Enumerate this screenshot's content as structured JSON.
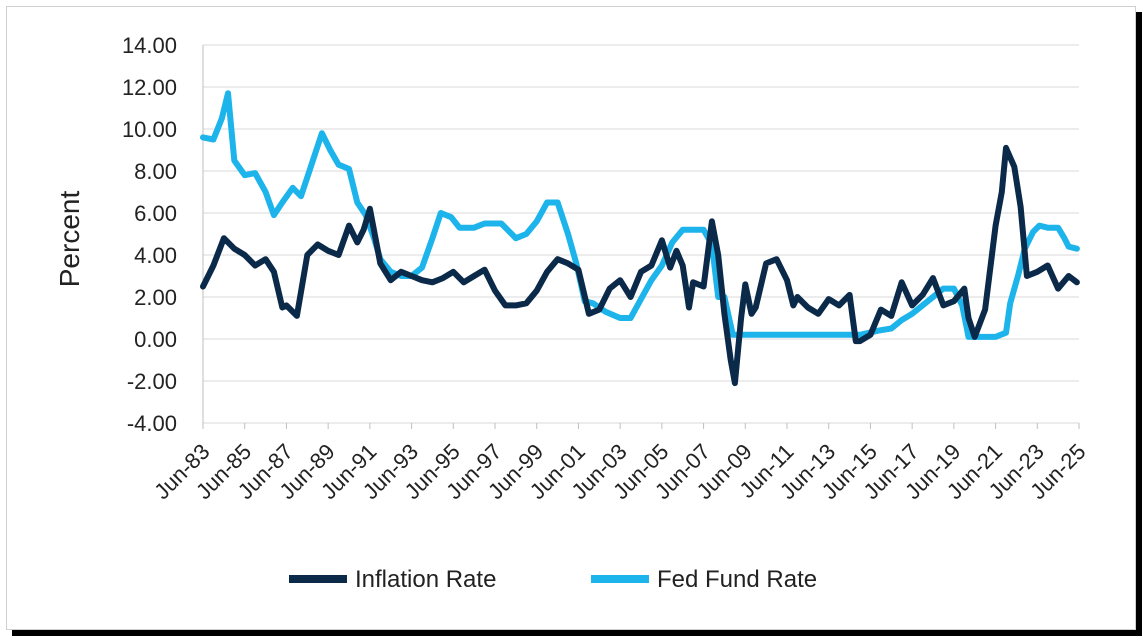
{
  "chart_data": {
    "type": "line",
    "title": "",
    "xlabel": "",
    "ylabel": "Percent",
    "ylim": [
      -4,
      14
    ],
    "yticks": [
      "14.00",
      "12.00",
      "10.00",
      "8.00",
      "6.00",
      "4.00",
      "2.00",
      "0.00",
      "-2.00",
      "-4.00"
    ],
    "xlim": [
      1983.5,
      2025.5
    ],
    "xticks": [
      "Jun-83",
      "Jun-85",
      "Jun-87",
      "Jun-89",
      "Jun-91",
      "Jun-93",
      "Jun-95",
      "Jun-97",
      "Jun-99",
      "Jun-01",
      "Jun-03",
      "Jun-05",
      "Jun-07",
      "Jun-09",
      "Jun-11",
      "Jun-13",
      "Jun-15",
      "Jun-17",
      "Jun-19",
      "Jun-21",
      "Jun-23",
      "Jun-25"
    ],
    "grid": true,
    "legend_position": "bottom",
    "series": [
      {
        "name": "Inflation Rate",
        "color": "#0b2a4a",
        "x": [
          1983.5,
          1984.0,
          1984.5,
          1985.0,
          1985.5,
          1986.0,
          1986.5,
          1986.9,
          1987.3,
          1987.5,
          1988.0,
          1988.5,
          1989.0,
          1989.5,
          1990.0,
          1990.5,
          1990.9,
          1991.2,
          1991.5,
          1992.0,
          1992.5,
          1993.0,
          1993.5,
          1994.0,
          1994.5,
          1995.0,
          1995.5,
          1996.0,
          1996.5,
          1997.0,
          1997.5,
          1998.0,
          1998.5,
          1999.0,
          1999.5,
          2000.0,
          2000.5,
          2001.0,
          2001.5,
          2002.0,
          2002.5,
          2003.0,
          2003.5,
          2004.0,
          2004.5,
          2005.0,
          2005.5,
          2005.9,
          2006.2,
          2006.5,
          2006.8,
          2007.0,
          2007.5,
          2007.9,
          2008.2,
          2008.5,
          2008.8,
          2009.0,
          2009.3,
          2009.5,
          2009.8,
          2010.0,
          2010.5,
          2011.0,
          2011.5,
          2011.8,
          2012.0,
          2012.5,
          2013.0,
          2013.5,
          2014.0,
          2014.5,
          2014.8,
          2015.0,
          2015.5,
          2016.0,
          2016.5,
          2017.0,
          2017.5,
          2018.0,
          2018.5,
          2019.0,
          2019.5,
          2020.0,
          2020.2,
          2020.5,
          2021.0,
          2021.5,
          2021.8,
          2022.0,
          2022.4,
          2022.7,
          2023.0,
          2023.5,
          2024.0,
          2024.5,
          2025.0,
          2025.4
        ],
        "values": [
          2.5,
          3.5,
          4.8,
          4.3,
          4.0,
          3.5,
          3.8,
          3.2,
          1.5,
          1.6,
          1.1,
          4.0,
          4.5,
          4.2,
          4.0,
          5.4,
          4.6,
          5.2,
          6.2,
          3.6,
          2.8,
          3.2,
          3.0,
          2.8,
          2.7,
          2.9,
          3.2,
          2.7,
          3.0,
          3.3,
          2.3,
          1.6,
          1.6,
          1.7,
          2.3,
          3.2,
          3.8,
          3.6,
          3.3,
          1.2,
          1.4,
          2.4,
          2.8,
          2.0,
          3.2,
          3.5,
          4.7,
          3.4,
          4.2,
          3.5,
          1.5,
          2.7,
          2.5,
          5.6,
          4.0,
          1.2,
          -1.0,
          -2.1,
          1.0,
          2.6,
          1.2,
          1.5,
          3.6,
          3.8,
          2.8,
          1.6,
          2.0,
          1.5,
          1.2,
          1.9,
          1.6,
          2.1,
          -0.1,
          -0.1,
          0.2,
          1.4,
          1.1,
          2.7,
          1.6,
          2.1,
          2.9,
          1.6,
          1.8,
          2.4,
          1.0,
          0.1,
          1.4,
          5.4,
          7.0,
          9.1,
          8.2,
          6.3,
          3.0,
          3.2,
          3.5,
          2.4,
          3.0,
          2.7
        ]
      },
      {
        "name": "Fed Fund Rate",
        "color": "#1cb4ea",
        "x": [
          1983.5,
          1984.0,
          1984.4,
          1984.7,
          1985.0,
          1985.5,
          1986.0,
          1986.5,
          1986.9,
          1987.3,
          1987.8,
          1988.2,
          1988.6,
          1989.2,
          1989.6,
          1990.0,
          1990.5,
          1990.9,
          1991.3,
          1991.7,
          1992.0,
          1992.5,
          1993.0,
          1993.5,
          1994.0,
          1994.5,
          1994.9,
          1995.4,
          1995.8,
          1996.5,
          1997.0,
          1997.8,
          1998.5,
          1999.0,
          1999.5,
          2000.0,
          2000.5,
          2001.0,
          2001.4,
          2001.8,
          2002.2,
          2002.8,
          2003.5,
          2004.0,
          2004.5,
          2005.0,
          2005.5,
          2006.0,
          2006.5,
          2007.0,
          2007.5,
          2007.9,
          2008.2,
          2008.5,
          2008.9,
          2009.5,
          2010.0,
          2011.0,
          2012.0,
          2013.0,
          2014.0,
          2015.0,
          2015.9,
          2016.5,
          2017.0,
          2017.5,
          2018.0,
          2018.5,
          2019.0,
          2019.5,
          2019.9,
          2020.2,
          2020.5,
          2021.0,
          2021.5,
          2022.0,
          2022.2,
          2022.6,
          2022.9,
          2023.3,
          2023.6,
          2024.0,
          2024.5,
          2024.8,
          2025.0,
          2025.4
        ],
        "values": [
          9.6,
          9.5,
          10.5,
          11.7,
          8.5,
          7.8,
          7.9,
          7.0,
          5.9,
          6.5,
          7.2,
          6.8,
          8.0,
          9.8,
          9.0,
          8.3,
          8.1,
          6.5,
          5.9,
          4.8,
          3.8,
          3.2,
          3.0,
          3.0,
          3.4,
          4.8,
          6.0,
          5.8,
          5.3,
          5.3,
          5.5,
          5.5,
          4.8,
          5.0,
          5.6,
          6.5,
          6.5,
          5.0,
          3.6,
          1.8,
          1.7,
          1.3,
          1.0,
          1.0,
          1.9,
          2.8,
          3.5,
          4.6,
          5.2,
          5.2,
          5.2,
          4.5,
          2.0,
          2.0,
          0.2,
          0.2,
          0.2,
          0.2,
          0.2,
          0.2,
          0.2,
          0.2,
          0.4,
          0.5,
          0.9,
          1.2,
          1.6,
          2.0,
          2.4,
          2.4,
          1.6,
          0.1,
          0.1,
          0.1,
          0.1,
          0.3,
          1.7,
          3.1,
          4.3,
          5.1,
          5.4,
          5.3,
          5.3,
          4.8,
          4.4,
          4.3
        ]
      }
    ]
  }
}
